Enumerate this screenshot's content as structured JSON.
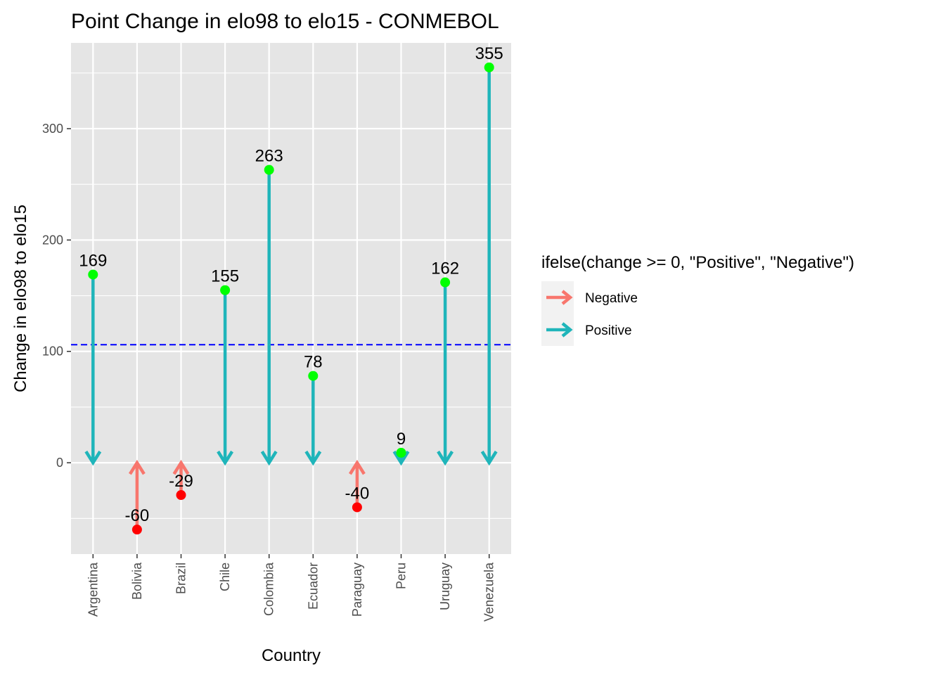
{
  "chart_data": {
    "type": "lollipop-arrow",
    "title": "Point Change in elo98 to elo15 - CONMEBOL",
    "xlabel": "Country",
    "ylabel": "Change in elo98 to elo15",
    "categories": [
      "Argentina",
      "Bolivia",
      "Brazil",
      "Chile",
      "Colombia",
      "Ecuador",
      "Paraguay",
      "Peru",
      "Uruguay",
      "Venezuela"
    ],
    "values": [
      169,
      -60,
      -29,
      155,
      263,
      78,
      -40,
      9,
      162,
      355
    ],
    "ylim": [
      -82,
      377
    ],
    "yticks": [
      0,
      100,
      200,
      300
    ],
    "reference_line": {
      "value": 106,
      "style": "dashed",
      "color": "#0000FF"
    },
    "legend": {
      "title": "ifelse(change >= 0, \"Positive\", \"Negative\")",
      "position": "right",
      "entries": [
        {
          "name": "Negative",
          "color": "#F8766D"
        },
        {
          "name": "Positive",
          "color": "#1FB5BA"
        }
      ]
    },
    "colors": {
      "positive_arrow": "#1FB5BA",
      "negative_arrow": "#F8766D",
      "positive_point": "#00FF00",
      "negative_point": "#FF0000",
      "panel_background": "#E5E5E5",
      "grid": "#FFFFFF"
    },
    "grid": true
  }
}
